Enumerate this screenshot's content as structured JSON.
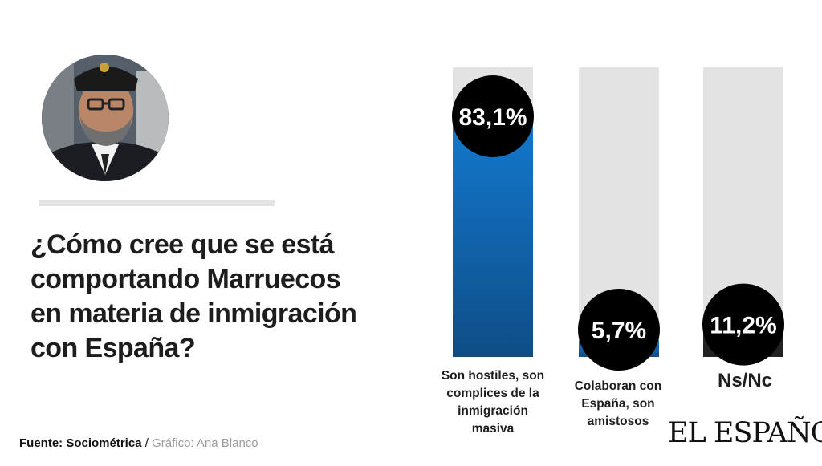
{
  "question": "¿Cómo cree que se está comportando Marruecos en materia de inmigración con España?",
  "source": {
    "label": "Fuente: Sociométrica",
    "separator": " / ",
    "credit": "Gráfico: Ana Blanco"
  },
  "logo": "EL ESPAÑOL",
  "colors": {
    "accent_top": "#1479cf",
    "accent_bottom": "#0d4d86",
    "track": "#e3e3e3",
    "bubble": "#000000",
    "dark_fill": "#222222"
  },
  "chart_data": {
    "type": "bar",
    "categories": [
      "Son hostiles, son complices de la inmigración masiva",
      "Colaboran con España, son amistosos",
      "Ns/Nc"
    ],
    "values": [
      83.1,
      5.7,
      11.2
    ],
    "value_labels": [
      "83,1%",
      "5,7%",
      "11,2%"
    ],
    "unit": "%",
    "ylim": [
      0,
      100
    ],
    "grid": false
  }
}
